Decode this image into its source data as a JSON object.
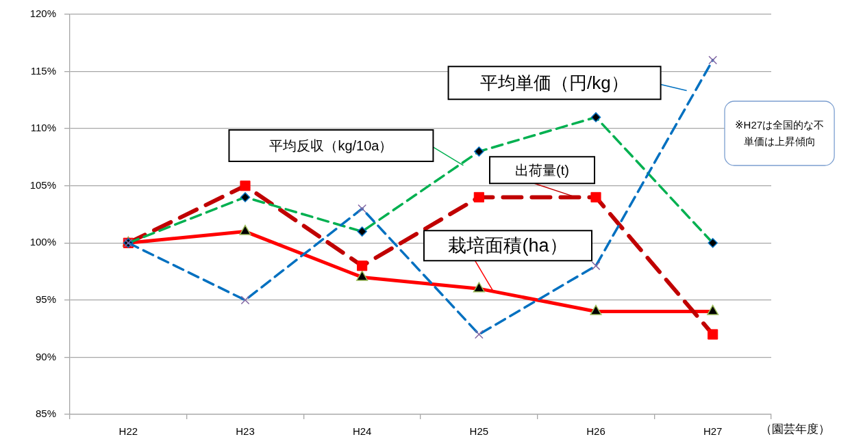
{
  "chart_data": {
    "type": "line",
    "xlabel": "（園芸年度）",
    "categories": [
      "H22",
      "H23",
      "H24",
      "H25",
      "H26",
      "H27"
    ],
    "series": [
      {
        "name": "栽培面積(ha）",
        "color": "#ff0000",
        "colors": [
          "#000000",
          "#000000",
          "#000000",
          "#000000",
          "#000000",
          "#000000"
        ],
        "marker": "triangle",
        "line_style": "solid",
        "values": [
          100,
          101,
          97,
          96,
          94,
          94
        ]
      },
      {
        "name": "出荷量(t)",
        "color": "#c00000",
        "colors": [
          "#ff0000",
          "#ff0000",
          "#ff0000",
          "#ff0000",
          "#ff0000",
          "#ff0000"
        ],
        "marker": "square",
        "line_style": "dashed",
        "values": [
          100,
          105,
          98,
          104,
          104,
          92
        ]
      },
      {
        "name": "平均反収（kg/10a）",
        "color": "#00b050",
        "colors": [
          "#000000",
          "#000000",
          "#000000",
          "#000000",
          "#000000",
          "#000000"
        ],
        "marker": "diamond",
        "line_style": "dashed",
        "values": [
          100,
          104,
          101,
          108,
          111,
          100
        ]
      },
      {
        "name": "平均単価（円/kg）",
        "color": "#0070c0",
        "colors": [
          "#8064a2",
          "#8064a2",
          "#8064a2",
          "#8064a2",
          "#8064a2",
          "#8064a2"
        ],
        "marker": "cross",
        "line_style": "dashed",
        "values": [
          100,
          95,
          103,
          92,
          98,
          116
        ]
      }
    ],
    "ylim": [
      85,
      120
    ],
    "yticks": [
      {
        "value": 85,
        "label": "85%"
      },
      {
        "value": 90,
        "label": "90%"
      },
      {
        "value": 95,
        "label": "95%"
      },
      {
        "value": 100,
        "label": "100%"
      },
      {
        "value": 105,
        "label": "105%"
      },
      {
        "value": 110,
        "label": "110%"
      },
      {
        "value": 115,
        "label": "115%"
      },
      {
        "value": 120,
        "label": "120%"
      }
    ],
    "grid": "y",
    "annotations": [
      "※H27は全国的な不単価は上昇傾向"
    ]
  }
}
